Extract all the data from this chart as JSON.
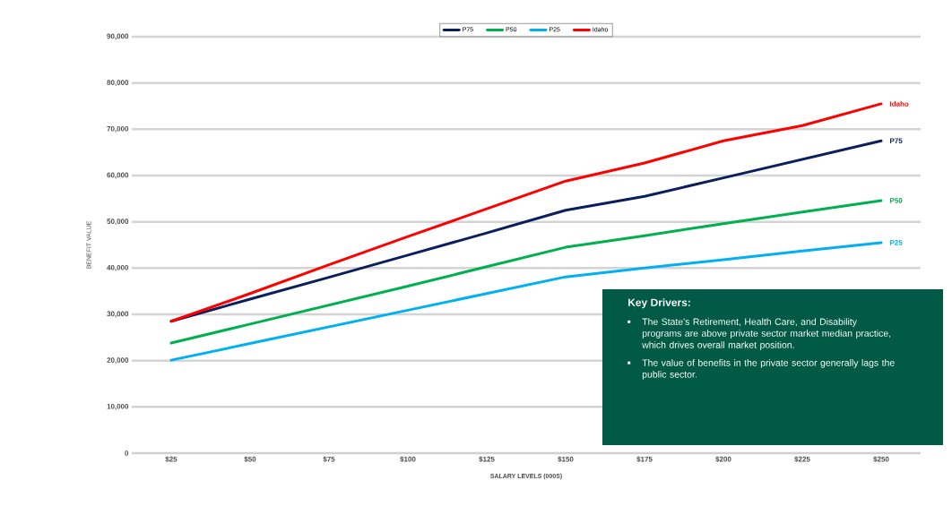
{
  "chart_data": {
    "type": "line",
    "xlabel": "SALARY LEVELS (000S)",
    "ylabel": "BENEFIT VALUE",
    "categories": [
      "$25",
      "$50",
      "$75",
      "$100",
      "$125",
      "$150",
      "$175",
      "$200",
      "$225",
      "$250"
    ],
    "series": [
      {
        "name": "P75",
        "color": "#0a1f5c",
        "values": [
          28500,
          33300,
          38000,
          42800,
          47600,
          52500,
          55500,
          59500,
          63500,
          67500
        ]
      },
      {
        "name": "P50",
        "color": "#00b050",
        "values": [
          23800,
          27900,
          32000,
          36100,
          40300,
          44500,
          47000,
          49600,
          52100,
          54600
        ]
      },
      {
        "name": "P25",
        "color": "#00b0f0",
        "values": [
          20100,
          23700,
          27300,
          30900,
          34500,
          38100,
          40000,
          41800,
          43700,
          45500
        ]
      },
      {
        "name": "Idaho",
        "color": "#ff0000",
        "values": [
          28500,
          34500,
          40700,
          46800,
          52800,
          58800,
          62700,
          67500,
          70800,
          75500
        ]
      }
    ],
    "ylim": [
      0,
      90000
    ],
    "yticks": [
      0,
      {
        "value": 10000,
        "label": "10,000"
      },
      {
        "value": 20000,
        "label": "20,000"
      },
      {
        "value": 30000,
        "label": "30,000"
      },
      {
        "value": 40000,
        "label": "40,000"
      },
      {
        "value": 50000,
        "label": "50,000"
      },
      {
        "value": 60000,
        "label": "60,000"
      },
      {
        "value": 70000,
        "label": "70,000"
      },
      {
        "value": 80000,
        "label": "80,000"
      },
      {
        "value": 90000,
        "label": "90,000"
      }
    ],
    "grid": "y",
    "legend": "top",
    "annotations": [
      "Key Drivers:",
      "The State's Retirement, Health Care, and Disability programs are above private sector market median practice, which drives overall market position.",
      "The value of benefits in the private sector generally lags the public sector."
    ]
  }
}
